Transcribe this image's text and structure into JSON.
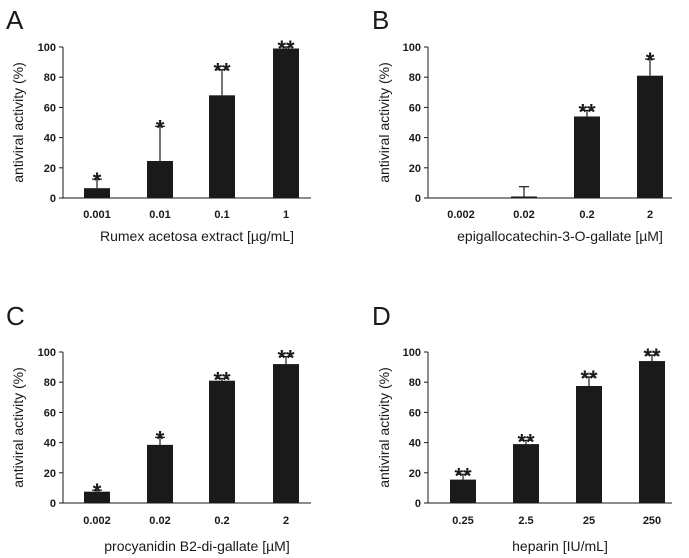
{
  "chart_data": [
    {
      "panel": "A",
      "type": "bar",
      "categories": [
        "0.001",
        "0.01",
        "0.1",
        "1"
      ],
      "values": [
        6.5,
        24.5,
        68,
        99
      ],
      "errors": [
        6,
        23,
        17,
        1
      ],
      "significance": [
        "*",
        "*",
        "**",
        "**"
      ],
      "xlabel": "Rumex acetosa extract [µg/mL]",
      "ylabel": "antiviral activity (%)",
      "yticks": [
        "0",
        "20",
        "40",
        "60",
        "80",
        "100"
      ],
      "ylim": [
        0,
        100
      ]
    },
    {
      "panel": "B",
      "type": "bar",
      "categories": [
        "0.002",
        "0.02",
        "0.2",
        "2"
      ],
      "values": [
        0,
        1,
        54,
        81
      ],
      "errors": [
        0,
        6.5,
        4,
        11
      ],
      "significance": [
        "",
        "",
        "**",
        "*"
      ],
      "xlabel": "epigallocatechin-3-O-gallate [µM]",
      "ylabel": "antiviral activity (%)",
      "yticks": [
        "0",
        "20",
        "40",
        "60",
        "80",
        "100"
      ],
      "ylim": [
        0,
        100
      ]
    },
    {
      "panel": "C",
      "type": "bar",
      "categories": [
        "0.002",
        "0.02",
        "0.2",
        "2"
      ],
      "values": [
        7.5,
        38.5,
        81,
        92
      ],
      "errors": [
        1,
        5,
        1.5,
        5
      ],
      "significance": [
        "*",
        "*",
        "**",
        "**"
      ],
      "xlabel": "procyanidin B2-di-gallate [µM]",
      "ylabel": "antiviral activity (%)",
      "yticks": [
        "0",
        "20",
        "40",
        "60",
        "80",
        "100"
      ],
      "ylim": [
        0,
        100
      ]
    },
    {
      "panel": "D",
      "type": "bar",
      "categories": [
        "0.25",
        "2.5",
        "25",
        "250"
      ],
      "values": [
        15.5,
        39,
        77.5,
        94
      ],
      "errors": [
        3.5,
        2.5,
        6,
        4
      ],
      "significance": [
        "**",
        "**",
        "**",
        "**"
      ],
      "xlabel": "heparin [IU/mL]",
      "ylabel": "antiviral activity (%)",
      "yticks": [
        "0",
        "20",
        "40",
        "60",
        "80",
        "100"
      ],
      "ylim": [
        0,
        100
      ]
    }
  ]
}
